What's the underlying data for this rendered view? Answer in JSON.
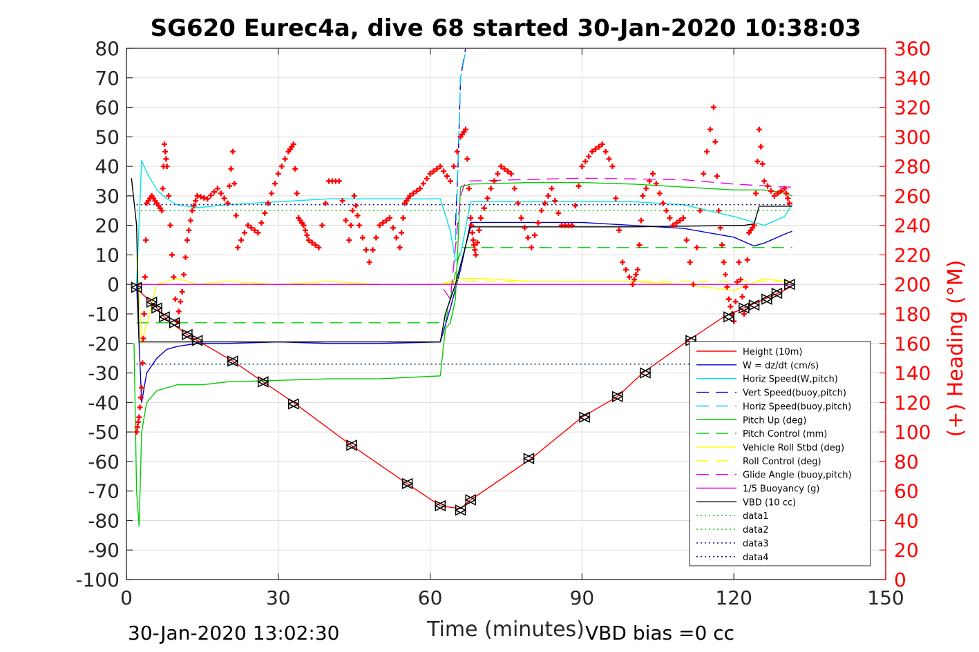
{
  "chart_data": {
    "type": "line",
    "title": "SG620 Eurec4a, dive 68 started 30-Jan-2020 10:38:03",
    "xlabel": "Time (minutes)",
    "ylabel_right": "(+) Heading (°M)",
    "xlim": [
      0,
      150
    ],
    "ylim": [
      -100,
      80
    ],
    "ylim_right": [
      0,
      360
    ],
    "xticks": [
      0,
      30,
      60,
      90,
      120,
      150
    ],
    "yticks": [
      80,
      70,
      60,
      50,
      40,
      30,
      20,
      10,
      0,
      -10,
      -20,
      -30,
      -40,
      -50,
      -60,
      -70,
      -80,
      -90,
      -100
    ],
    "yticks_right": [
      360,
      340,
      320,
      300,
      280,
      260,
      240,
      220,
      200,
      180,
      160,
      140,
      120,
      100,
      80,
      60,
      40,
      20,
      0
    ],
    "grid": true,
    "legend_position": "bottom-right",
    "footer_left": "30-Jan-2020 13:02:30",
    "footer_right": "VBD bias =0 cc",
    "series": [
      {
        "name": "Height (10m)",
        "color": "#ff0000",
        "dash": "solid",
        "x": [
          2,
          3,
          6,
          8,
          12,
          14,
          21,
          27,
          33,
          44,
          55,
          62,
          66,
          68,
          80,
          90,
          97,
          102,
          111,
          118,
          122,
          126,
          130,
          132
        ],
        "y": [
          -1,
          -3,
          -8,
          -12,
          -17,
          -19,
          -26,
          -33,
          -40,
          -54,
          -67,
          -75,
          -76,
          -73,
          -59,
          -45,
          -38,
          -30,
          -19,
          -11,
          -8,
          -5,
          -2,
          0
        ]
      },
      {
        "name": "W = dz/dt (cm/s)",
        "color": "#0000cc",
        "dash": "solid",
        "x": [
          2,
          3,
          4,
          6,
          8,
          10,
          14,
          20,
          30,
          40,
          50,
          62,
          64,
          66,
          68,
          80,
          90,
          100,
          110,
          120,
          124,
          126,
          130,
          131.5
        ],
        "y": [
          0,
          -40,
          -30,
          -25,
          -22,
          -21,
          -20,
          -20,
          -19.5,
          -20,
          -20,
          -19.5,
          -8,
          5,
          21,
          21,
          21,
          20,
          19,
          16,
          13,
          14,
          17,
          18
        ]
      },
      {
        "name": "Horiz Speed(W,pitch)",
        "color": "#00e5e5",
        "dash": "solid",
        "x": [
          2,
          3,
          4,
          6,
          8,
          10,
          14,
          20,
          30,
          40,
          50,
          58,
          62,
          64,
          65,
          66,
          68,
          80,
          90,
          100,
          110,
          120,
          126,
          130,
          131.5
        ],
        "y": [
          0,
          42,
          38,
          32,
          29,
          27,
          26,
          27,
          28,
          29,
          29,
          29,
          29,
          18,
          8,
          10,
          28,
          28,
          28,
          28,
          27,
          23,
          20,
          23,
          27
        ]
      },
      {
        "name": "Vert Speed(buoy,pitch)",
        "color": "#0000cc",
        "dash": "long",
        "x": [
          65,
          65.5,
          66,
          67
        ],
        "y": [
          20,
          40,
          70,
          80
        ]
      },
      {
        "name": "Horiz Speed(buoy,pitch)",
        "color": "#00bfff",
        "dash": "long",
        "x": [
          65,
          65.5,
          66,
          67
        ],
        "y": [
          15,
          40,
          70,
          79
        ]
      },
      {
        "name": "Pitch Up (deg)",
        "color": "#00cc00",
        "dash": "solid",
        "x": [
          1.5,
          2,
          2.5,
          3,
          4,
          6,
          10,
          15,
          20,
          30,
          40,
          50,
          62,
          63,
          64,
          65,
          66,
          68,
          80,
          90,
          100,
          110,
          120,
          126,
          130,
          131.5
        ],
        "y": [
          -20,
          -70,
          -82,
          -50,
          -40,
          -36,
          -34,
          -34,
          -33,
          -32.5,
          -32,
          -32,
          -31,
          -15,
          -13,
          -5,
          33,
          34,
          34.5,
          34.5,
          34,
          33,
          32,
          32,
          31,
          30
        ]
      },
      {
        "name": "Pitch Control (mm)",
        "color": "#00cc00",
        "dash": "long",
        "x": [
          2,
          3,
          10,
          30,
          62,
          63,
          66,
          67,
          80,
          100,
          130,
          131.5
        ],
        "y": [
          -13,
          -13,
          -13,
          -13,
          -13,
          -13,
          12.5,
          12.5,
          12.5,
          12.5,
          12.5,
          12.5
        ]
      },
      {
        "name": "Vehicle Roll Stbd (deg)",
        "color": "#ffff00",
        "dash": "solid",
        "x": [
          2,
          3,
          6,
          10,
          14,
          20,
          30,
          40,
          50,
          60,
          62,
          66,
          70,
          80,
          90,
          100,
          110,
          120,
          126,
          130,
          131.5
        ],
        "y": [
          10,
          -20,
          0,
          2,
          0,
          1,
          0,
          1,
          0,
          0,
          0,
          2,
          2,
          1,
          1,
          1,
          0,
          -2,
          2,
          1,
          0
        ]
      },
      {
        "name": "Roll Control (deg)",
        "color": "#ffff00",
        "dash": "long",
        "x": [
          2,
          3,
          10,
          30,
          60,
          62,
          66,
          70,
          90,
          120,
          131.5
        ],
        "y": [
          0,
          0,
          0,
          0,
          0,
          0,
          1,
          1,
          1,
          1,
          1
        ]
      },
      {
        "name": "Glide Angle (buoy,pitch)",
        "color": "#e600e6",
        "dash": "long",
        "x": [
          2,
          3,
          30,
          62,
          64,
          66,
          67,
          90,
          110,
          120,
          130,
          131.5
        ],
        "y": [
          0,
          0,
          0,
          0,
          -5,
          30,
          35,
          36,
          35.5,
          34,
          33,
          33
        ]
      },
      {
        "name": "1/5 Buoyancy (g)",
        "color": "#e600e6",
        "dash": "solid",
        "x": [
          2,
          3,
          30,
          62,
          66,
          67,
          131.5
        ],
        "y": [
          0,
          0,
          0,
          0,
          0,
          0,
          0
        ]
      },
      {
        "name": "VBD (10 cc)",
        "color": "#000000",
        "dash": "solid",
        "x": [
          1,
          2,
          2.5,
          3,
          62,
          63,
          64,
          65,
          68,
          100,
          121,
          122,
          124,
          125,
          130,
          131.5
        ],
        "y": [
          36,
          20,
          -19.5,
          -19.5,
          -19.5,
          -10,
          -5,
          0,
          19.5,
          19.5,
          20,
          20,
          20.5,
          26.5,
          26.5,
          26.5
        ]
      },
      {
        "name": "data1",
        "color": "#00cc00",
        "dash": "dot",
        "x": [
          2,
          131.5
        ],
        "y": [
          25,
          25
        ]
      },
      {
        "name": "data2",
        "color": "#00cc00",
        "dash": "dot",
        "x": [
          2,
          131.5
        ],
        "y": [
          -27,
          -27
        ]
      },
      {
        "name": "data3",
        "color": "#000080",
        "dash": "dot",
        "x": [
          2,
          131.5
        ],
        "y": [
          27,
          27
        ]
      },
      {
        "name": "data4",
        "color": "#000080",
        "dash": "dot",
        "x": [
          2,
          131.5
        ],
        "y": [
          -27,
          -27
        ]
      }
    ],
    "heading": {
      "color": "#ff0000",
      "axis": "right",
      "x": [
        2,
        2.5,
        3,
        3.5,
        4,
        5,
        6,
        7,
        7.5,
        8,
        9,
        10,
        11,
        12,
        13,
        14,
        16,
        18,
        20,
        21,
        22,
        24,
        26,
        28,
        30,
        32,
        33,
        34,
        35,
        36,
        38,
        40,
        42,
        44,
        45,
        46,
        48,
        50,
        52,
        54,
        55,
        56,
        58,
        60,
        62,
        64,
        66,
        67,
        68,
        68.5,
        69,
        70,
        72,
        74,
        76,
        78,
        80,
        82,
        84,
        86,
        88,
        90,
        92,
        94,
        96,
        98,
        100,
        101,
        102,
        104,
        106,
        108,
        110,
        112,
        114,
        116,
        117,
        118,
        119,
        120,
        121,
        122,
        123,
        124,
        125,
        126,
        128,
        130,
        131
      ],
      "y": [
        100,
        110,
        130,
        180,
        255,
        260,
        255,
        250,
        295,
        280,
        220,
        175,
        195,
        230,
        250,
        260,
        258,
        265,
        255,
        290,
        225,
        240,
        235,
        255,
        275,
        290,
        295,
        245,
        240,
        230,
        225,
        270,
        270,
        230,
        260,
        240,
        215,
        240,
        245,
        225,
        255,
        260,
        265,
        275,
        280,
        270,
        300,
        305,
        245,
        230,
        220,
        245,
        265,
        280,
        275,
        245,
        225,
        250,
        265,
        240,
        240,
        280,
        290,
        295,
        280,
        215,
        200,
        210,
        260,
        275,
        255,
        240,
        245,
        200,
        275,
        320,
        250,
        215,
        190,
        175,
        215,
        180,
        235,
        240,
        305,
        270,
        260,
        265,
        255
      ]
    },
    "markers": {
      "color": "#000000",
      "x": [
        2,
        5,
        6,
        7.5,
        9.5,
        12,
        14,
        21,
        27,
        33,
        44.5,
        55.5,
        62,
        66,
        68,
        79.5,
        90.5,
        97,
        102.5,
        111.5,
        119,
        122,
        124,
        126.5,
        128.5,
        131
      ],
      "y": [
        -1,
        -6,
        -8,
        -11,
        -13,
        -17,
        -19,
        -26,
        -33,
        -40.5,
        -54.5,
        -67.5,
        -75,
        -76.5,
        -73,
        -59,
        -45,
        -38,
        -30,
        -19,
        -11,
        -8,
        -7,
        -5,
        -3,
        0
      ]
    }
  }
}
